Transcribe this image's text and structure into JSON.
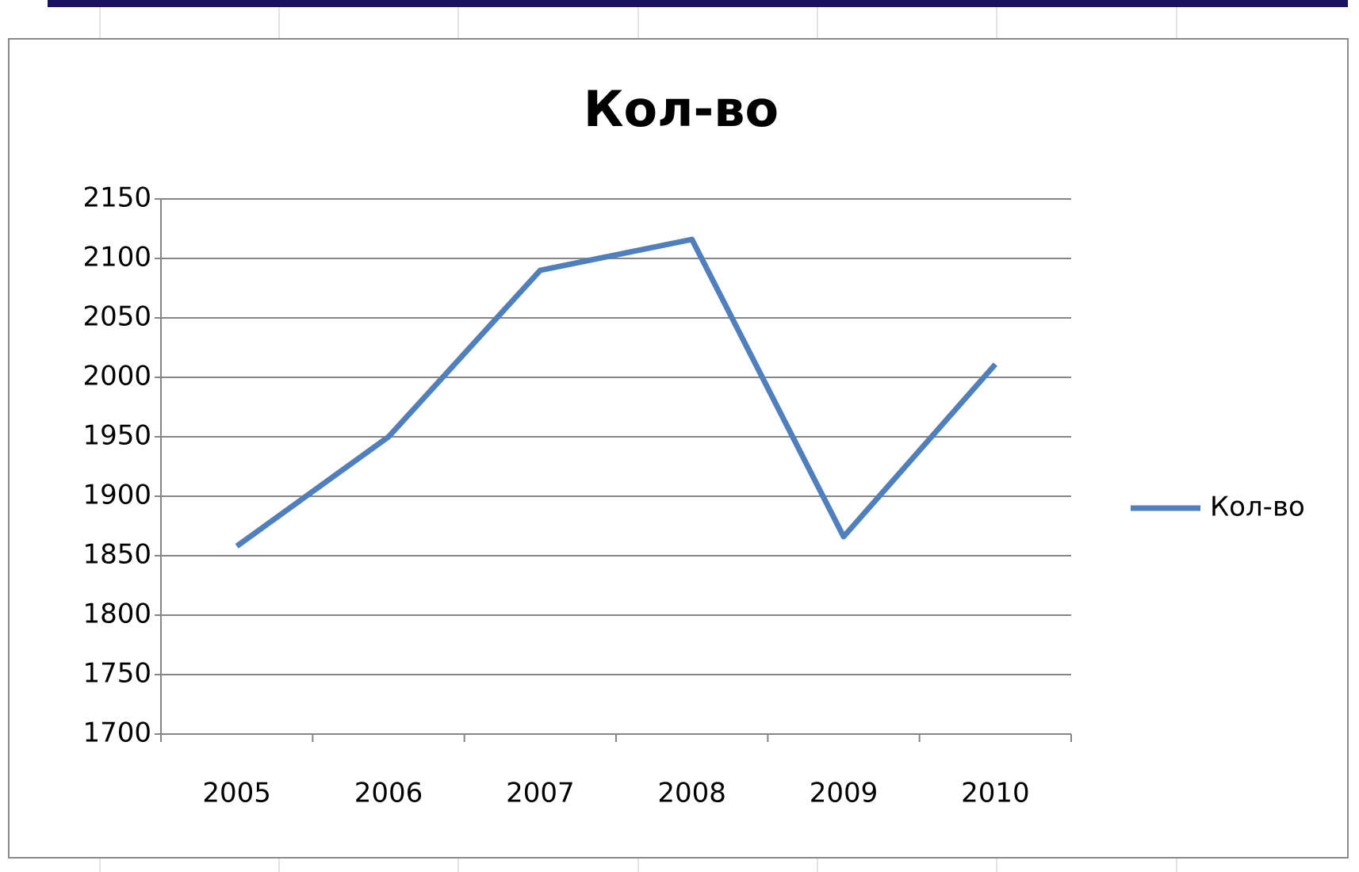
{
  "chart_data": {
    "type": "line",
    "title": "Кол-во",
    "categories": [
      "2005",
      "2006",
      "2007",
      "2008",
      "2009",
      "2010"
    ],
    "series": [
      {
        "name": "Кол-во",
        "color": "#4f7fbd",
        "values": [
          1858,
          1950,
          2090,
          2116,
          1866,
          2011
        ]
      }
    ],
    "ylim": [
      1700,
      2150
    ],
    "yticks": [
      1700,
      1750,
      1800,
      1850,
      1900,
      1950,
      2000,
      2050,
      2100,
      2150
    ],
    "grid": true,
    "legend": "right"
  }
}
